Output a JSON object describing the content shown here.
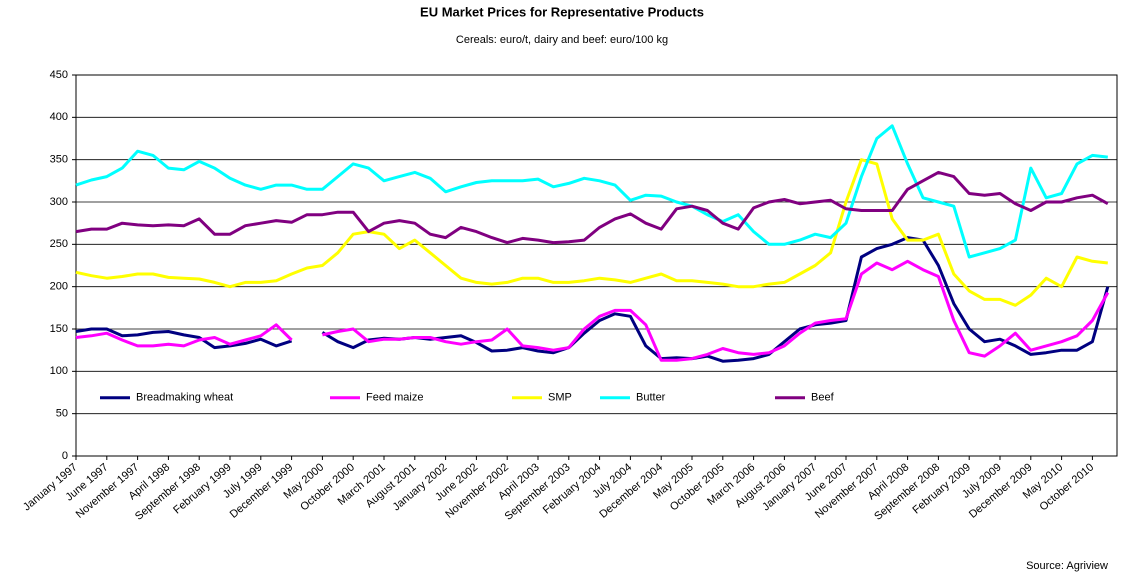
{
  "chart_data": {
    "type": "line",
    "title": "EU Market Prices for Representative Products",
    "subtitle": "Cereals: euro/t, dairy and beef: euro/100 kg",
    "source": "Source: Agriview",
    "categories": [
      "January 1997",
      null,
      "June 1997",
      null,
      "November 1997",
      null,
      "April 1998",
      null,
      "September 1998",
      null,
      "February 1999",
      null,
      "July 1999",
      null,
      "December 1999",
      null,
      "May 2000",
      null,
      "October 2000",
      null,
      "March 2001",
      null,
      "August 2001",
      null,
      "January 2002",
      null,
      "June 2002",
      null,
      "November 2002",
      null,
      "April 2003",
      null,
      "September 2003",
      null,
      "February 2004",
      null,
      "July 2004",
      null,
      "December 2004",
      null,
      "May 2005",
      null,
      "October 2005",
      null,
      "March 2006",
      null,
      "August 2006",
      null,
      "January 2007",
      null,
      "June 2007",
      null,
      "November 2007",
      null,
      "April 2008",
      null,
      "September 2008",
      null,
      "February 2009",
      null,
      "July 2009",
      null,
      "December 2009",
      null,
      "May 2010",
      null,
      "October 2010",
      null
    ],
    "series": [
      {
        "name": "Breadmaking wheat",
        "color": "#000080",
        "values": [
          147,
          150,
          150,
          142,
          143,
          146,
          147,
          143,
          140,
          128,
          130,
          133,
          138,
          130,
          136,
          null,
          146,
          135,
          128,
          137,
          139,
          138,
          140,
          138,
          140,
          142,
          134,
          124,
          125,
          128,
          124,
          122,
          128,
          145,
          160,
          168,
          165,
          130,
          115,
          116,
          115,
          118,
          112,
          113,
          115,
          120,
          135,
          150,
          155,
          157,
          160,
          235,
          245,
          250,
          258,
          255,
          225,
          180,
          150,
          135,
          138,
          130,
          120,
          122,
          125,
          125,
          135,
          200
        ]
      },
      {
        "name": "Feed maize",
        "color": "#ff00ff",
        "values": [
          140,
          142,
          145,
          137,
          130,
          130,
          132,
          130,
          137,
          140,
          132,
          137,
          142,
          155,
          137,
          null,
          143,
          147,
          150,
          135,
          138,
          138,
          140,
          140,
          135,
          132,
          135,
          137,
          150,
          130,
          128,
          125,
          128,
          150,
          165,
          172,
          172,
          155,
          113,
          113,
          115,
          120,
          127,
          122,
          120,
          122,
          130,
          145,
          157,
          160,
          162,
          215,
          228,
          220,
          230,
          220,
          212,
          160,
          122,
          118,
          130,
          145,
          125,
          130,
          135,
          142,
          160,
          193
        ]
      },
      {
        "name": "SMP",
        "color": "#ffff00",
        "values": [
          217,
          213,
          210,
          212,
          215,
          215,
          211,
          210,
          209,
          205,
          200,
          205,
          205,
          207,
          215,
          222,
          225,
          240,
          262,
          265,
          262,
          245,
          255,
          240,
          225,
          210,
          205,
          203,
          205,
          210,
          210,
          205,
          205,
          207,
          210,
          208,
          205,
          210,
          215,
          207,
          207,
          205,
          203,
          200,
          200,
          203,
          205,
          215,
          225,
          240,
          300,
          350,
          345,
          280,
          255,
          255,
          262,
          215,
          195,
          185,
          185,
          178,
          190,
          210,
          200,
          235,
          230,
          228
        ]
      },
      {
        "name": "Butter",
        "color": "#00ffff",
        "values": [
          320,
          326,
          330,
          340,
          360,
          355,
          340,
          338,
          348,
          340,
          328,
          320,
          315,
          320,
          320,
          315,
          315,
          330,
          345,
          340,
          325,
          330,
          335,
          328,
          312,
          318,
          323,
          325,
          325,
          325,
          327,
          318,
          322,
          328,
          325,
          320,
          302,
          308,
          307,
          300,
          295,
          285,
          277,
          285,
          265,
          250,
          250,
          255,
          262,
          258,
          275,
          330,
          375,
          390,
          345,
          305,
          300,
          295,
          235,
          240,
          245,
          255,
          340,
          305,
          310,
          345,
          355,
          353
        ]
      },
      {
        "name": "Beef",
        "color": "#800080",
        "values": [
          265,
          268,
          268,
          275,
          273,
          272,
          273,
          272,
          280,
          262,
          262,
          272,
          275,
          278,
          276,
          285,
          285,
          288,
          288,
          265,
          275,
          278,
          275,
          262,
          258,
          270,
          265,
          258,
          252,
          257,
          255,
          252,
          253,
          255,
          270,
          280,
          286,
          275,
          268,
          292,
          295,
          290,
          275,
          268,
          293,
          300,
          303,
          298,
          300,
          302,
          292,
          290,
          290,
          290,
          315,
          325,
          335,
          330,
          310,
          308,
          310,
          298,
          290,
          300,
          300,
          305,
          308,
          298
        ]
      }
    ],
    "ylim": [
      0,
      450
    ],
    "yticks": [
      0,
      50,
      100,
      150,
      200,
      250,
      300,
      350,
      400,
      450
    ],
    "grid": true,
    "legend": "bottom"
  }
}
